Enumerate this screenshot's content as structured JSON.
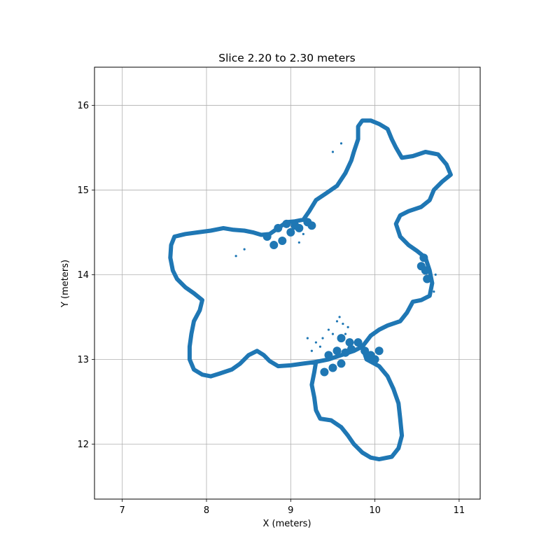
{
  "chart_data": {
    "type": "scatter",
    "title": "Slice 2.20 to 2.30 meters",
    "xlabel": "X (meters)",
    "ylabel": "Y (meters)",
    "xlim": [
      6.67,
      11.25
    ],
    "ylim": [
      11.35,
      16.45
    ],
    "xticks": [
      7,
      8,
      9,
      10,
      11
    ],
    "yticks": [
      12,
      13,
      14,
      15,
      16
    ],
    "grid": true,
    "legend": "none",
    "marker_color": "#1f77b4",
    "series": [
      {
        "outline": [
          [
            7.62,
            14.45
          ],
          [
            7.75,
            14.48
          ],
          [
            7.9,
            14.5
          ],
          [
            8.05,
            14.52
          ],
          [
            8.2,
            14.55
          ],
          [
            8.32,
            14.53
          ],
          [
            8.45,
            14.52
          ],
          [
            8.55,
            14.5
          ],
          [
            8.65,
            14.47
          ],
          [
            8.75,
            14.48
          ],
          [
            8.85,
            14.55
          ],
          [
            8.95,
            14.62
          ],
          [
            9.05,
            14.63
          ],
          [
            9.15,
            14.65
          ],
          [
            9.22,
            14.75
          ],
          [
            9.3,
            14.88
          ],
          [
            9.42,
            14.96
          ],
          [
            9.55,
            15.05
          ],
          [
            9.65,
            15.2
          ],
          [
            9.72,
            15.35
          ],
          [
            9.75,
            15.45
          ],
          [
            9.8,
            15.6
          ],
          [
            9.8,
            15.75
          ],
          [
            9.85,
            15.82
          ],
          [
            9.95,
            15.82
          ],
          [
            10.05,
            15.78
          ],
          [
            10.15,
            15.72
          ],
          [
            10.2,
            15.6
          ],
          [
            10.25,
            15.5
          ],
          [
            10.32,
            15.38
          ],
          [
            10.45,
            15.4
          ],
          [
            10.6,
            15.45
          ],
          [
            10.75,
            15.42
          ],
          [
            10.85,
            15.3
          ],
          [
            10.9,
            15.18
          ],
          [
            10.8,
            15.1
          ],
          [
            10.7,
            15.0
          ],
          [
            10.65,
            14.88
          ],
          [
            10.55,
            14.8
          ],
          [
            10.4,
            14.75
          ],
          [
            10.3,
            14.7
          ],
          [
            10.25,
            14.6
          ],
          [
            10.3,
            14.45
          ],
          [
            10.4,
            14.35
          ],
          [
            10.5,
            14.28
          ],
          [
            10.6,
            14.2
          ],
          [
            10.65,
            14.05
          ],
          [
            10.68,
            13.9
          ],
          [
            10.65,
            13.75
          ],
          [
            10.55,
            13.7
          ],
          [
            10.45,
            13.68
          ],
          [
            10.38,
            13.55
          ],
          [
            10.3,
            13.45
          ],
          [
            10.15,
            13.4
          ],
          [
            10.05,
            13.35
          ],
          [
            9.95,
            13.28
          ],
          [
            9.85,
            13.15
          ],
          [
            9.9,
            13.0
          ],
          [
            10.05,
            12.92
          ],
          [
            10.15,
            12.8
          ],
          [
            10.22,
            12.65
          ],
          [
            10.28,
            12.48
          ],
          [
            10.3,
            12.3
          ],
          [
            10.32,
            12.1
          ],
          [
            10.28,
            11.95
          ],
          [
            10.2,
            11.85
          ],
          [
            10.05,
            11.82
          ],
          [
            9.95,
            11.84
          ],
          [
            9.85,
            11.9
          ],
          [
            9.75,
            12.0
          ],
          [
            9.68,
            12.1
          ],
          [
            9.6,
            12.2
          ],
          [
            9.48,
            12.28
          ],
          [
            9.35,
            12.3
          ],
          [
            9.3,
            12.4
          ],
          [
            9.28,
            12.55
          ],
          [
            9.25,
            12.7
          ],
          [
            9.28,
            12.85
          ],
          [
            9.3,
            12.97
          ],
          [
            9.15,
            12.95
          ],
          [
            9.0,
            12.93
          ],
          [
            8.85,
            12.92
          ],
          [
            8.75,
            12.98
          ],
          [
            8.68,
            13.05
          ],
          [
            8.6,
            13.1
          ],
          [
            8.5,
            13.05
          ],
          [
            8.4,
            12.95
          ],
          [
            8.3,
            12.88
          ],
          [
            8.15,
            12.83
          ],
          [
            8.05,
            12.8
          ],
          [
            7.95,
            12.82
          ],
          [
            7.85,
            12.88
          ],
          [
            7.8,
            13.0
          ],
          [
            7.8,
            13.15
          ],
          [
            7.82,
            13.3
          ],
          [
            7.85,
            13.45
          ],
          [
            7.92,
            13.58
          ],
          [
            7.95,
            13.7
          ],
          [
            7.85,
            13.78
          ],
          [
            7.75,
            13.85
          ],
          [
            7.65,
            13.95
          ],
          [
            7.6,
            14.05
          ],
          [
            7.57,
            14.2
          ],
          [
            7.58,
            14.35
          ],
          [
            7.62,
            14.45
          ]
        ],
        "inner_loop": [
          [
            9.3,
            12.97
          ],
          [
            9.45,
            13.0
          ],
          [
            9.6,
            13.05
          ],
          [
            9.75,
            13.1
          ],
          [
            9.85,
            13.15
          ]
        ],
        "clusters": [
          [
            8.72,
            14.45
          ],
          [
            8.85,
            14.55
          ],
          [
            8.95,
            14.6
          ],
          [
            9.05,
            14.58
          ],
          [
            8.8,
            14.35
          ],
          [
            8.9,
            14.4
          ],
          [
            9.0,
            14.5
          ],
          [
            9.1,
            14.55
          ],
          [
            9.2,
            14.62
          ],
          [
            9.25,
            14.58
          ],
          [
            9.45,
            13.05
          ],
          [
            9.55,
            13.1
          ],
          [
            9.65,
            13.08
          ],
          [
            9.72,
            13.12
          ],
          [
            9.8,
            13.2
          ],
          [
            9.88,
            13.1
          ],
          [
            9.95,
            13.05
          ],
          [
            10.0,
            13.0
          ],
          [
            10.05,
            13.1
          ],
          [
            9.6,
            12.95
          ],
          [
            9.5,
            12.9
          ],
          [
            9.4,
            12.85
          ],
          [
            9.7,
            13.2
          ],
          [
            9.6,
            13.25
          ],
          [
            10.55,
            14.1
          ],
          [
            10.6,
            14.05
          ],
          [
            10.62,
            13.95
          ],
          [
            10.58,
            14.2
          ]
        ],
        "scatter": [
          [
            8.45,
            14.3
          ],
          [
            8.35,
            14.22
          ],
          [
            9.58,
            13.5
          ],
          [
            9.62,
            13.42
          ],
          [
            9.65,
            13.3
          ],
          [
            9.45,
            13.35
          ],
          [
            9.38,
            13.25
          ],
          [
            9.3,
            13.2
          ],
          [
            9.2,
            13.25
          ],
          [
            9.25,
            13.1
          ],
          [
            9.35,
            13.15
          ],
          [
            9.5,
            13.3
          ],
          [
            9.55,
            13.45
          ],
          [
            9.68,
            13.38
          ],
          [
            9.15,
            14.48
          ],
          [
            9.1,
            14.38
          ],
          [
            9.6,
            15.55
          ],
          [
            9.5,
            15.45
          ],
          [
            10.72,
            14.0
          ],
          [
            10.7,
            13.8
          ]
        ]
      }
    ]
  }
}
